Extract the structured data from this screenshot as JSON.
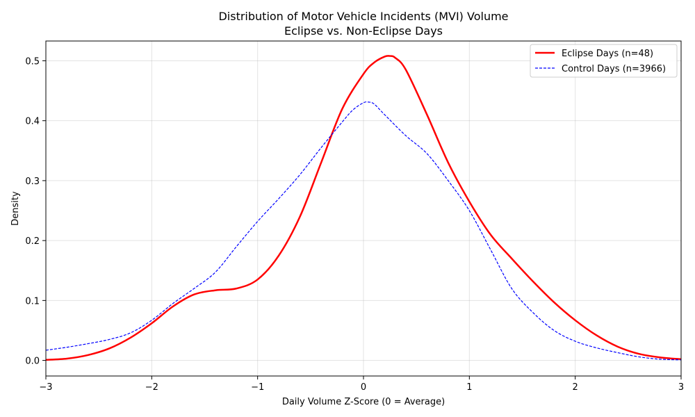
{
  "chart_data": {
    "type": "line",
    "title_lines": [
      "Distribution of Motor Vehicle Incidents (MVI) Volume",
      "Eclipse vs. Non-Eclipse Days"
    ],
    "xlabel": "Daily Volume Z-Score (0 = Average)",
    "ylabel": "Density",
    "xlim": [
      -3,
      3
    ],
    "ylim": [
      -0.026,
      0.533
    ],
    "grid": true,
    "legend_position": "top-right",
    "x_ticks": [
      {
        "value": -3,
        "label": "−3"
      },
      {
        "value": -2,
        "label": "−2"
      },
      {
        "value": -1,
        "label": "−1"
      },
      {
        "value": 0,
        "label": "0"
      },
      {
        "value": 1,
        "label": "1"
      },
      {
        "value": 2,
        "label": "2"
      },
      {
        "value": 3,
        "label": "3"
      }
    ],
    "y_ticks": [
      {
        "value": 0.0,
        "label": "0.0"
      },
      {
        "value": 0.1,
        "label": "0.1"
      },
      {
        "value": 0.2,
        "label": "0.2"
      },
      {
        "value": 0.3,
        "label": "0.3"
      },
      {
        "value": 0.4,
        "label": "0.4"
      },
      {
        "value": 0.5,
        "label": "0.5"
      }
    ],
    "series": [
      {
        "name": "Eclipse Days (n=48)",
        "color": "#ff0000",
        "style": "solid",
        "x": [
          -3.0,
          -2.8,
          -2.6,
          -2.4,
          -2.2,
          -2.0,
          -1.8,
          -1.6,
          -1.4,
          -1.2,
          -1.0,
          -0.8,
          -0.6,
          -0.4,
          -0.2,
          0.0,
          0.1,
          0.2,
          0.25,
          0.3,
          0.4,
          0.6,
          0.8,
          1.0,
          1.2,
          1.4,
          1.6,
          1.8,
          2.0,
          2.2,
          2.4,
          2.6,
          2.8,
          3.0
        ],
        "y": [
          0.001,
          0.003,
          0.009,
          0.02,
          0.038,
          0.062,
          0.09,
          0.11,
          0.117,
          0.12,
          0.135,
          0.175,
          0.24,
          0.33,
          0.42,
          0.478,
          0.497,
          0.507,
          0.508,
          0.505,
          0.485,
          0.41,
          0.33,
          0.265,
          0.21,
          0.17,
          0.132,
          0.097,
          0.067,
          0.042,
          0.023,
          0.011,
          0.005,
          0.002
        ]
      },
      {
        "name": "Control Days (n=3966)",
        "color": "#0000ff",
        "style": "dashed",
        "x": [
          -3.0,
          -2.8,
          -2.6,
          -2.4,
          -2.2,
          -2.0,
          -1.8,
          -1.6,
          -1.4,
          -1.2,
          -1.0,
          -0.8,
          -0.6,
          -0.4,
          -0.2,
          -0.1,
          0.0,
          0.05,
          0.1,
          0.2,
          0.4,
          0.6,
          0.8,
          1.0,
          1.2,
          1.4,
          1.6,
          1.8,
          2.0,
          2.2,
          2.4,
          2.6,
          2.8,
          3.0
        ],
        "y": [
          0.017,
          0.022,
          0.028,
          0.035,
          0.046,
          0.067,
          0.095,
          0.12,
          0.147,
          0.19,
          0.232,
          0.27,
          0.31,
          0.355,
          0.398,
          0.418,
          0.43,
          0.431,
          0.428,
          0.41,
          0.375,
          0.345,
          0.3,
          0.25,
          0.185,
          0.12,
          0.08,
          0.05,
          0.032,
          0.021,
          0.013,
          0.006,
          0.002,
          0.001
        ]
      }
    ]
  }
}
